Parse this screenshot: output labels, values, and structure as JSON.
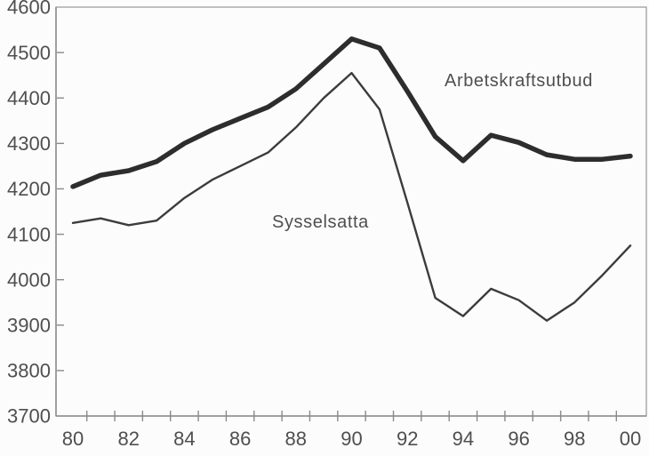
{
  "figure": {
    "background_color": "#fcfcfc",
    "axis_color": "#8a8a8a",
    "text_color": "#4f4f4f",
    "series_labels": {
      "supply": "Arbetskraftsutbud",
      "employed": "Sysselsatta"
    }
  },
  "chart_data": {
    "type": "line",
    "title": "",
    "xlabel": "",
    "ylabel": "",
    "x_years": [
      1980,
      1981,
      1982,
      1983,
      1984,
      1985,
      1986,
      1987,
      1988,
      1989,
      1990,
      1991,
      1992,
      1993,
      1994,
      1995,
      1996,
      1997,
      1998,
      1999,
      2000
    ],
    "x_tick_labels": [
      "80",
      "82",
      "84",
      "86",
      "88",
      "90",
      "92",
      "94",
      "96",
      "98",
      "00"
    ],
    "y_ticks": [
      3700,
      3800,
      3900,
      4000,
      4100,
      4200,
      4300,
      4400,
      4500,
      4600
    ],
    "ylim": [
      3700,
      4600
    ],
    "grid": false,
    "legend_position": "inline-annotations",
    "series": [
      {
        "name": "Arbetskraftsutbud",
        "line_weight": "thick",
        "color": "#2d2d2d",
        "values": [
          4205,
          4230,
          4240,
          4260,
          4300,
          4330,
          4355,
          4380,
          4420,
          4475,
          4530,
          4510,
          4415,
          4315,
          4262,
          4318,
          4302,
          4275,
          4265,
          4265,
          4272
        ]
      },
      {
        "name": "Sysselsatta",
        "line_weight": "thin",
        "color": "#3c3c3c",
        "values": [
          4125,
          4135,
          4120,
          4130,
          4180,
          4220,
          4250,
          4280,
          4335,
          4400,
          4455,
          4375,
          4170,
          3960,
          3920,
          3980,
          3955,
          3910,
          3950,
          4010,
          4075
        ]
      }
    ]
  }
}
